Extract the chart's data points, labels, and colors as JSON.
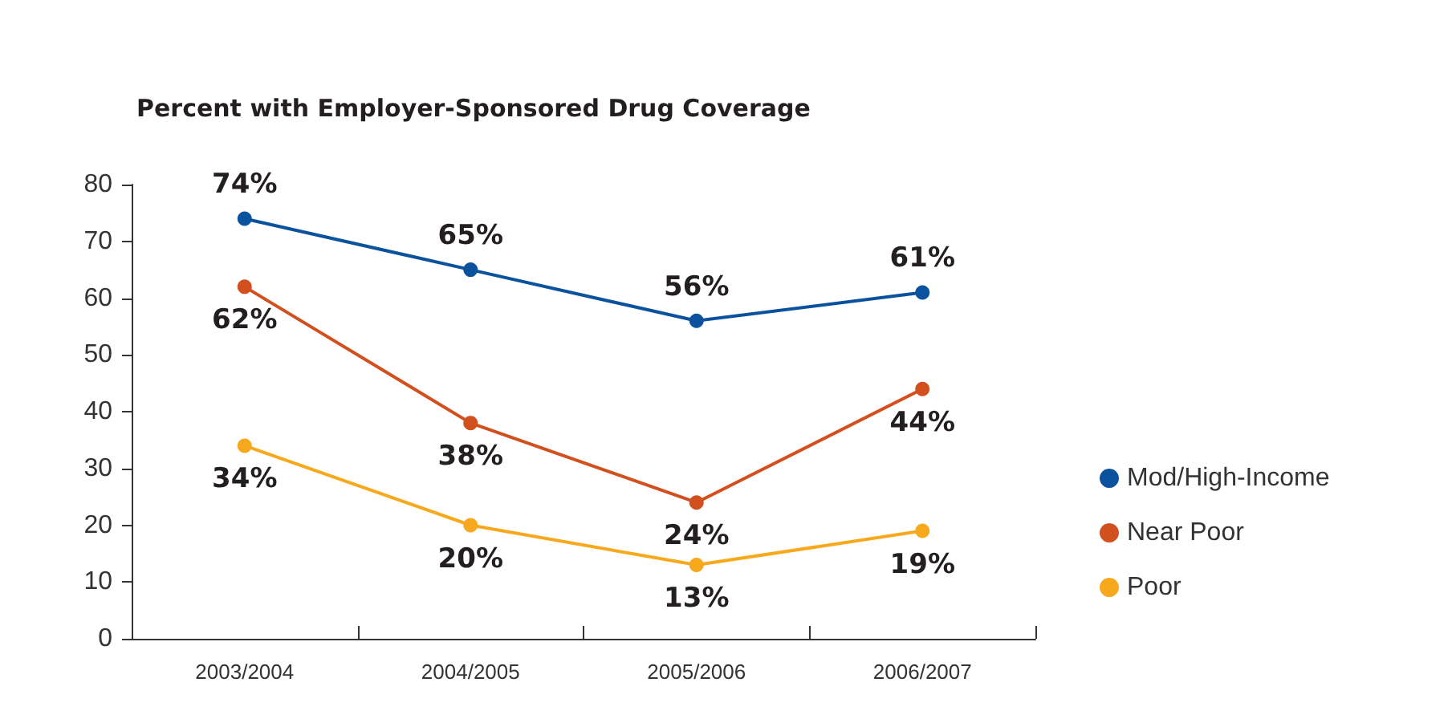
{
  "chart_data": {
    "type": "line",
    "title": "Percent with Employer-Sponsored Drug Coverage",
    "categories": [
      "2003/2004",
      "2004/2005",
      "2005/2006",
      "2006/2007"
    ],
    "series": [
      {
        "name": "Mod/High-Income",
        "color": "#0a529e",
        "values": [
          74,
          65,
          56,
          61
        ],
        "value_labels": [
          "74%",
          "65%",
          "56%",
          "61%"
        ]
      },
      {
        "name": "Near Poor",
        "color": "#d2501e",
        "values": [
          62,
          38,
          24,
          44
        ],
        "value_labels": [
          "62%",
          "38%",
          "24%",
          "44%"
        ]
      },
      {
        "name": "Poor",
        "color": "#f8a81c",
        "values": [
          34,
          20,
          13,
          19
        ],
        "value_labels": [
          "34%",
          "20%",
          "13%",
          "19%"
        ]
      }
    ],
    "ylim": [
      0,
      80
    ],
    "yticks": [
      0,
      10,
      20,
      30,
      40,
      50,
      60,
      70,
      80
    ],
    "grid": false,
    "legend": "right",
    "marker": "circle",
    "line_style": "solid"
  }
}
